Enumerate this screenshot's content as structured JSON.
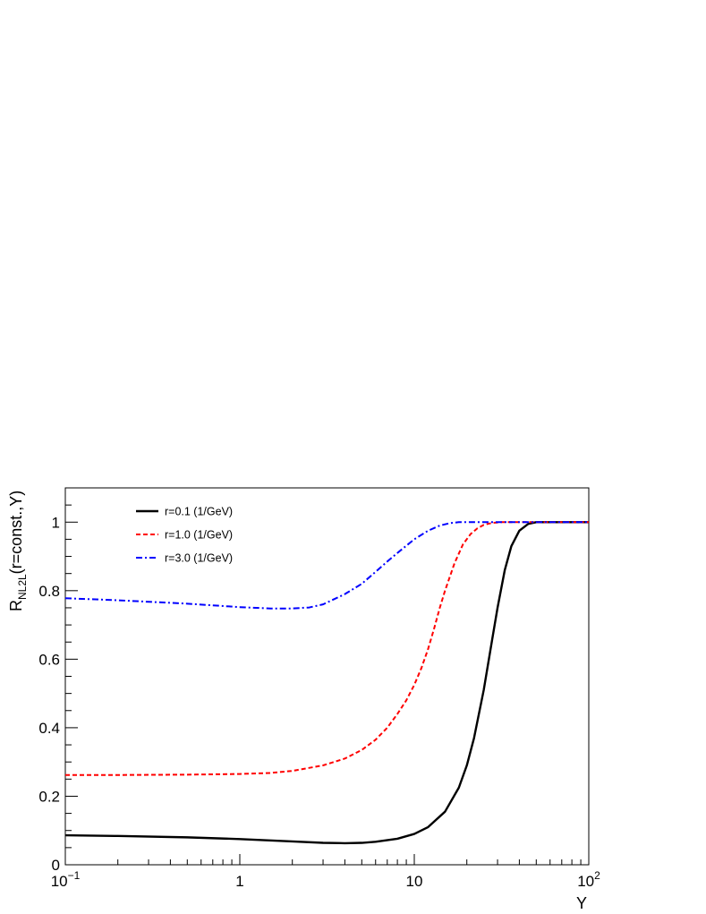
{
  "chart_data": {
    "type": "line",
    "xscale": "log",
    "xlim": [
      0.1,
      100
    ],
    "ylim": [
      0,
      1.1
    ],
    "xlabel": "Y",
    "ylabel_main": "R",
    "ylabel_sub": "NL2L",
    "ylabel_rest": "(r=const.,Y)",
    "x_ticks": [
      {
        "value": 0.1,
        "base": "10",
        "exp": "−1"
      },
      {
        "value": 1,
        "base": "1",
        "exp": ""
      },
      {
        "value": 10,
        "base": "10",
        "exp": ""
      },
      {
        "value": 100,
        "base": "10",
        "exp": "2"
      }
    ],
    "y_ticks": [
      {
        "value": 0,
        "label": "0"
      },
      {
        "value": 0.2,
        "label": "0.2"
      },
      {
        "value": 0.4,
        "label": "0.4"
      },
      {
        "value": 0.6,
        "label": "0.6"
      },
      {
        "value": 0.8,
        "label": "0.8"
      },
      {
        "value": 1.0,
        "label": "1"
      }
    ],
    "grid": false,
    "legend_position": "top-left",
    "series": [
      {
        "name": "r=0.1 (1/GeV)",
        "color": "#000000",
        "dash": "solid",
        "x": [
          0.1,
          0.2,
          0.5,
          1,
          2,
          3,
          4,
          5,
          6,
          8,
          10,
          12,
          15,
          18,
          20,
          22,
          25,
          28,
          30,
          33,
          36,
          40,
          45,
          50,
          60,
          80,
          100
        ],
        "y": [
          0.086,
          0.084,
          0.08,
          0.075,
          0.068,
          0.064,
          0.063,
          0.064,
          0.067,
          0.076,
          0.09,
          0.11,
          0.155,
          0.225,
          0.29,
          0.37,
          0.51,
          0.66,
          0.75,
          0.86,
          0.93,
          0.975,
          0.995,
          1.0,
          1.0,
          1.0,
          1.0
        ]
      },
      {
        "name": "r=1.0 (1/GeV)",
        "color": "#ff0000",
        "dash": "dashed",
        "x": [
          0.1,
          0.2,
          0.5,
          1,
          1.5,
          2,
          3,
          4,
          5,
          6,
          7,
          8,
          9,
          10,
          11,
          12,
          13,
          14,
          15,
          17,
          19,
          21,
          23,
          25,
          28,
          32,
          40,
          60,
          100
        ],
        "y": [
          0.262,
          0.262,
          0.263,
          0.265,
          0.268,
          0.274,
          0.29,
          0.31,
          0.335,
          0.365,
          0.4,
          0.44,
          0.48,
          0.525,
          0.575,
          0.63,
          0.69,
          0.75,
          0.8,
          0.88,
          0.935,
          0.965,
          0.982,
          0.992,
          0.998,
          1.0,
          1.0,
          1.0,
          1.0
        ]
      },
      {
        "name": "r=3.0 (1/GeV)",
        "color": "#0000ff",
        "dash": "dashdot",
        "x": [
          0.1,
          0.2,
          0.5,
          1,
          1.5,
          2,
          2.5,
          3,
          4,
          5,
          6,
          7,
          8,
          10,
          12,
          14,
          16,
          18,
          20,
          25,
          30,
          40,
          60,
          100
        ],
        "y": [
          0.778,
          0.772,
          0.762,
          0.752,
          0.748,
          0.748,
          0.751,
          0.76,
          0.79,
          0.82,
          0.855,
          0.885,
          0.91,
          0.95,
          0.975,
          0.99,
          0.997,
          1.0,
          1.0,
          1.0,
          1.0,
          1.0,
          1.0,
          1.0
        ]
      }
    ]
  }
}
